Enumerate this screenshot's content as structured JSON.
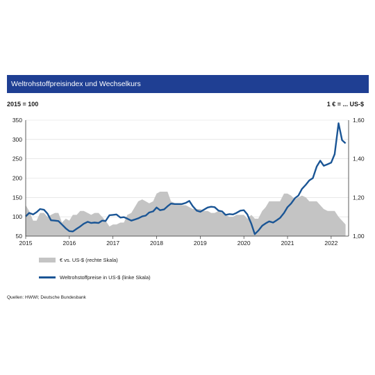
{
  "chart_data": {
    "type": "line",
    "title": "Weltrohstoffpreisindex und Wechselkurs",
    "left_axis": {
      "unit_label": "2015 = 100",
      "ylim": [
        50,
        350
      ],
      "ticks": [
        "350",
        "300",
        "250",
        "200",
        "150",
        "100",
        "50"
      ],
      "tick_values": [
        350,
        300,
        250,
        200,
        150,
        100,
        50
      ]
    },
    "right_axis": {
      "unit_label": "1 € = ... US-$",
      "ylim": [
        1.0,
        1.6
      ],
      "ticks": [
        "1,60",
        "1,40",
        "1,20",
        "1,00"
      ],
      "tick_values": [
        1.6,
        1.4,
        1.2,
        1.0
      ]
    },
    "x_axis": {
      "xlim": [
        2015.0,
        2022.4
      ],
      "ticks": [
        "2015",
        "2016",
        "2017",
        "2018",
        "2019",
        "2020",
        "2021",
        "2022"
      ],
      "tick_values": [
        2015,
        2016,
        2017,
        2018,
        2019,
        2020,
        2021,
        2022
      ]
    },
    "grid": "horizontal",
    "legend_position": "bottom-left",
    "series": [
      {
        "name": "€ vs. US-$ (rechte Skala)",
        "type": "area",
        "axis": "right",
        "color": "#c4c4c4",
        "points": [
          [
            2015.0,
            1.16
          ],
          [
            2015.08,
            1.13
          ],
          [
            2015.17,
            1.08
          ],
          [
            2015.25,
            1.08
          ],
          [
            2015.33,
            1.12
          ],
          [
            2015.42,
            1.12
          ],
          [
            2015.5,
            1.1
          ],
          [
            2015.58,
            1.11
          ],
          [
            2015.67,
            1.12
          ],
          [
            2015.75,
            1.12
          ],
          [
            2015.83,
            1.07
          ],
          [
            2015.92,
            1.09
          ],
          [
            2016.0,
            1.08
          ],
          [
            2016.08,
            1.11
          ],
          [
            2016.17,
            1.11
          ],
          [
            2016.25,
            1.13
          ],
          [
            2016.33,
            1.13
          ],
          [
            2016.42,
            1.12
          ],
          [
            2016.5,
            1.11
          ],
          [
            2016.58,
            1.12
          ],
          [
            2016.67,
            1.12
          ],
          [
            2016.75,
            1.1
          ],
          [
            2016.83,
            1.08
          ],
          [
            2016.92,
            1.05
          ],
          [
            2017.0,
            1.06
          ],
          [
            2017.08,
            1.06
          ],
          [
            2017.17,
            1.07
          ],
          [
            2017.25,
            1.07
          ],
          [
            2017.33,
            1.11
          ],
          [
            2017.42,
            1.12
          ],
          [
            2017.5,
            1.15
          ],
          [
            2017.58,
            1.18
          ],
          [
            2017.67,
            1.19
          ],
          [
            2017.75,
            1.18
          ],
          [
            2017.83,
            1.17
          ],
          [
            2017.92,
            1.18
          ],
          [
            2018.0,
            1.22
          ],
          [
            2018.08,
            1.23
          ],
          [
            2018.17,
            1.23
          ],
          [
            2018.25,
            1.23
          ],
          [
            2018.33,
            1.18
          ],
          [
            2018.42,
            1.17
          ],
          [
            2018.5,
            1.17
          ],
          [
            2018.58,
            1.16
          ],
          [
            2018.67,
            1.16
          ],
          [
            2018.75,
            1.15
          ],
          [
            2018.83,
            1.14
          ],
          [
            2018.92,
            1.14
          ],
          [
            2019.0,
            1.14
          ],
          [
            2019.08,
            1.13
          ],
          [
            2019.17,
            1.13
          ],
          [
            2019.25,
            1.12
          ],
          [
            2019.33,
            1.12
          ],
          [
            2019.42,
            1.13
          ],
          [
            2019.5,
            1.12
          ],
          [
            2019.58,
            1.11
          ],
          [
            2019.67,
            1.1
          ],
          [
            2019.75,
            1.1
          ],
          [
            2019.83,
            1.11
          ],
          [
            2019.92,
            1.11
          ],
          [
            2020.0,
            1.11
          ],
          [
            2020.08,
            1.09
          ],
          [
            2020.17,
            1.11
          ],
          [
            2020.25,
            1.09
          ],
          [
            2020.33,
            1.09
          ],
          [
            2020.42,
            1.13
          ],
          [
            2020.5,
            1.15
          ],
          [
            2020.58,
            1.18
          ],
          [
            2020.67,
            1.18
          ],
          [
            2020.75,
            1.18
          ],
          [
            2020.83,
            1.18
          ],
          [
            2020.92,
            1.22
          ],
          [
            2021.0,
            1.22
          ],
          [
            2021.08,
            1.21
          ],
          [
            2021.17,
            1.19
          ],
          [
            2021.25,
            1.2
          ],
          [
            2021.33,
            1.21
          ],
          [
            2021.42,
            1.2
          ],
          [
            2021.5,
            1.18
          ],
          [
            2021.58,
            1.18
          ],
          [
            2021.67,
            1.18
          ],
          [
            2021.75,
            1.16
          ],
          [
            2021.83,
            1.14
          ],
          [
            2021.92,
            1.13
          ],
          [
            2022.0,
            1.13
          ],
          [
            2022.08,
            1.13
          ],
          [
            2022.17,
            1.1
          ],
          [
            2022.25,
            1.08
          ],
          [
            2022.33,
            1.06
          ]
        ]
      },
      {
        "name": "Weltrohstoffpreise in US-$ (linke Skala)",
        "type": "line",
        "axis": "left",
        "color": "#1a5595",
        "points": [
          [
            2015.0,
            101
          ],
          [
            2015.08,
            110
          ],
          [
            2015.17,
            106
          ],
          [
            2015.25,
            112
          ],
          [
            2015.33,
            120
          ],
          [
            2015.42,
            118
          ],
          [
            2015.5,
            108
          ],
          [
            2015.58,
            91
          ],
          [
            2015.67,
            90
          ],
          [
            2015.75,
            89
          ],
          [
            2015.83,
            80
          ],
          [
            2015.92,
            70
          ],
          [
            2016.0,
            63
          ],
          [
            2016.08,
            62
          ],
          [
            2016.17,
            69
          ],
          [
            2016.25,
            75
          ],
          [
            2016.33,
            82
          ],
          [
            2016.42,
            87
          ],
          [
            2016.5,
            84
          ],
          [
            2016.58,
            85
          ],
          [
            2016.67,
            84
          ],
          [
            2016.75,
            90
          ],
          [
            2016.83,
            89
          ],
          [
            2016.92,
            104
          ],
          [
            2017.0,
            105
          ],
          [
            2017.08,
            106
          ],
          [
            2017.17,
            98
          ],
          [
            2017.25,
            99
          ],
          [
            2017.33,
            95
          ],
          [
            2017.42,
            90
          ],
          [
            2017.5,
            93
          ],
          [
            2017.58,
            96
          ],
          [
            2017.67,
            101
          ],
          [
            2017.75,
            103
          ],
          [
            2017.83,
            111
          ],
          [
            2017.92,
            114
          ],
          [
            2018.0,
            124
          ],
          [
            2018.08,
            117
          ],
          [
            2018.17,
            119
          ],
          [
            2018.25,
            127
          ],
          [
            2018.33,
            134
          ],
          [
            2018.42,
            133
          ],
          [
            2018.5,
            133
          ],
          [
            2018.58,
            133
          ],
          [
            2018.67,
            136
          ],
          [
            2018.75,
            141
          ],
          [
            2018.83,
            127
          ],
          [
            2018.92,
            116
          ],
          [
            2019.0,
            113
          ],
          [
            2019.08,
            118
          ],
          [
            2019.17,
            124
          ],
          [
            2019.25,
            126
          ],
          [
            2019.33,
            125
          ],
          [
            2019.42,
            116
          ],
          [
            2019.5,
            114
          ],
          [
            2019.58,
            105
          ],
          [
            2019.67,
            107
          ],
          [
            2019.75,
            106
          ],
          [
            2019.83,
            110
          ],
          [
            2019.92,
            116
          ],
          [
            2020.0,
            117
          ],
          [
            2020.08,
            106
          ],
          [
            2020.17,
            82
          ],
          [
            2020.25,
            55
          ],
          [
            2020.33,
            64
          ],
          [
            2020.42,
            77
          ],
          [
            2020.5,
            83
          ],
          [
            2020.58,
            88
          ],
          [
            2020.67,
            85
          ],
          [
            2020.75,
            91
          ],
          [
            2020.83,
            97
          ],
          [
            2020.92,
            110
          ],
          [
            2021.0,
            125
          ],
          [
            2021.08,
            134
          ],
          [
            2021.17,
            148
          ],
          [
            2021.25,
            155
          ],
          [
            2021.33,
            172
          ],
          [
            2021.42,
            183
          ],
          [
            2021.5,
            194
          ],
          [
            2021.58,
            200
          ],
          [
            2021.67,
            230
          ],
          [
            2021.75,
            245
          ],
          [
            2021.83,
            232
          ],
          [
            2021.92,
            236
          ],
          [
            2022.0,
            240
          ],
          [
            2022.08,
            262
          ],
          [
            2022.17,
            342
          ],
          [
            2022.25,
            298
          ],
          [
            2022.33,
            290
          ]
        ]
      }
    ]
  },
  "source": "Quellen: HWWI; Deutsche Bundesbank"
}
